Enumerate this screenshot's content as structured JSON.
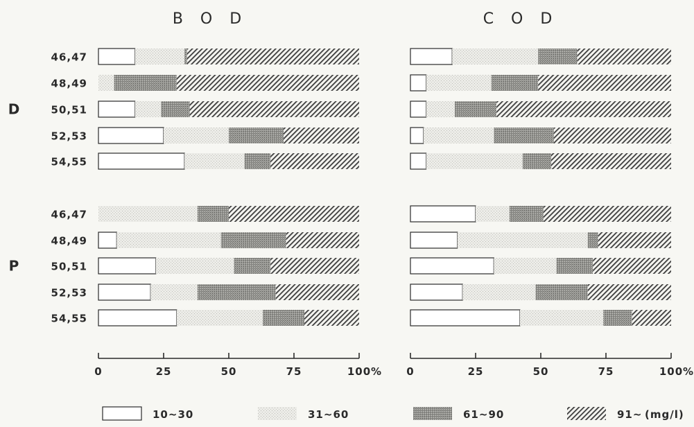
{
  "chart_data": {
    "type": "bar",
    "stacked": true,
    "orientation": "horizontal",
    "units": "(mg/l)",
    "groups": [
      {
        "name": "D",
        "categories": [
          "46,47",
          "48,49",
          "50,51",
          "52,53",
          "54,55"
        ]
      },
      {
        "name": "P",
        "categories": [
          "46,47",
          "48,49",
          "50,51",
          "52,53",
          "54,55"
        ]
      }
    ],
    "bins": [
      {
        "name": "10~30",
        "color": "#ffffff",
        "pattern": "empty"
      },
      {
        "name": "31~60",
        "color": "#e8e8e4",
        "pattern": "light-dots"
      },
      {
        "name": "61~90",
        "color": "#8f8f8f",
        "pattern": "dense-dots"
      },
      {
        "name": "91~",
        "color": "#555555",
        "pattern": "diagonal-hatch"
      }
    ],
    "xaxis": {
      "range": [
        0,
        100
      ],
      "ticks": [
        "0",
        "25",
        "50",
        "75",
        "100"
      ],
      "unit": "%"
    },
    "panels": [
      {
        "title": "B O D",
        "values": [
          [
            14,
            19,
            1,
            66
          ],
          [
            0,
            6,
            24,
            70
          ],
          [
            14,
            10,
            11,
            65
          ],
          [
            25,
            25,
            21,
            29
          ],
          [
            33,
            23,
            10,
            34
          ],
          [
            0,
            38,
            12,
            50
          ],
          [
            7,
            40,
            25,
            28
          ],
          [
            22,
            30,
            14,
            34
          ],
          [
            20,
            18,
            30,
            32
          ],
          [
            30,
            33,
            16,
            21
          ]
        ]
      },
      {
        "title": "C O D",
        "values": [
          [
            16,
            33,
            15,
            36
          ],
          [
            6,
            25,
            18,
            51
          ],
          [
            6,
            11,
            16,
            67
          ],
          [
            5,
            27,
            23,
            45
          ],
          [
            6,
            37,
            11,
            46
          ],
          [
            25,
            13,
            13,
            49
          ],
          [
            18,
            50,
            4,
            28
          ],
          [
            32,
            24,
            14,
            30
          ],
          [
            20,
            28,
            20,
            32
          ],
          [
            42,
            32,
            11,
            15
          ]
        ]
      }
    ],
    "legend_position": "bottom"
  },
  "legend_labels": [
    "10~30",
    "31~60",
    "61~90",
    "91~"
  ],
  "units_label": "(mg/l)",
  "percent_sign": "%"
}
